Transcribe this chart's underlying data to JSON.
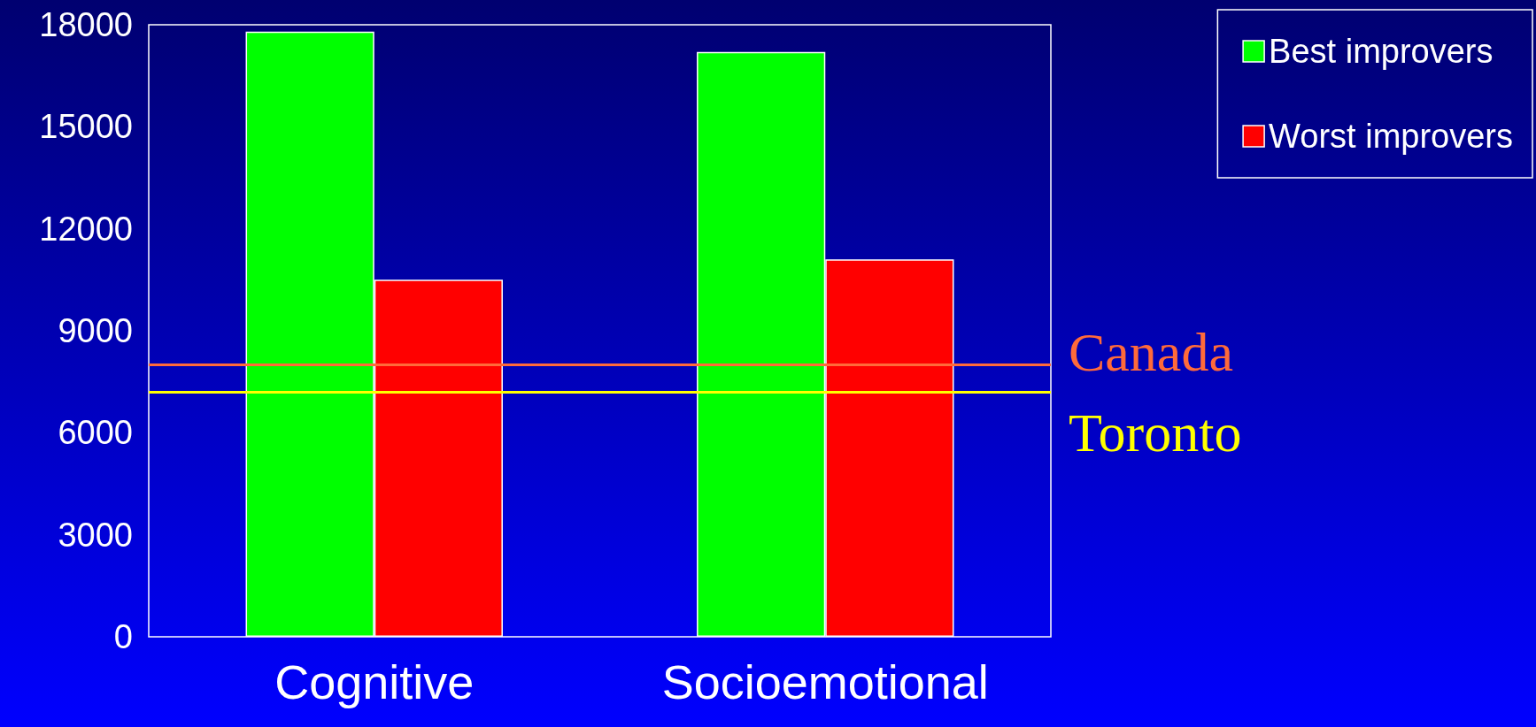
{
  "chart_data": {
    "type": "bar",
    "categories": [
      "Cognitive",
      "Socioemotional"
    ],
    "series": [
      {
        "name": "Best improvers",
        "color": "#00ff00",
        "values": [
          17800,
          17200
        ]
      },
      {
        "name": "Worst improvers",
        "color": "#ff0000",
        "values": [
          10500,
          11100
        ]
      }
    ],
    "ylim": [
      0,
      18000
    ],
    "yticks": [
      0,
      3000,
      6000,
      9000,
      12000,
      15000,
      18000
    ],
    "ref_lines": [
      {
        "axis": "y",
        "value": 8000,
        "label": "Canada",
        "color": "#ff6a3a"
      },
      {
        "axis": "y",
        "value": 7200,
        "label": "Toronto",
        "color": "#ffff00"
      }
    ],
    "legend": "top right"
  }
}
